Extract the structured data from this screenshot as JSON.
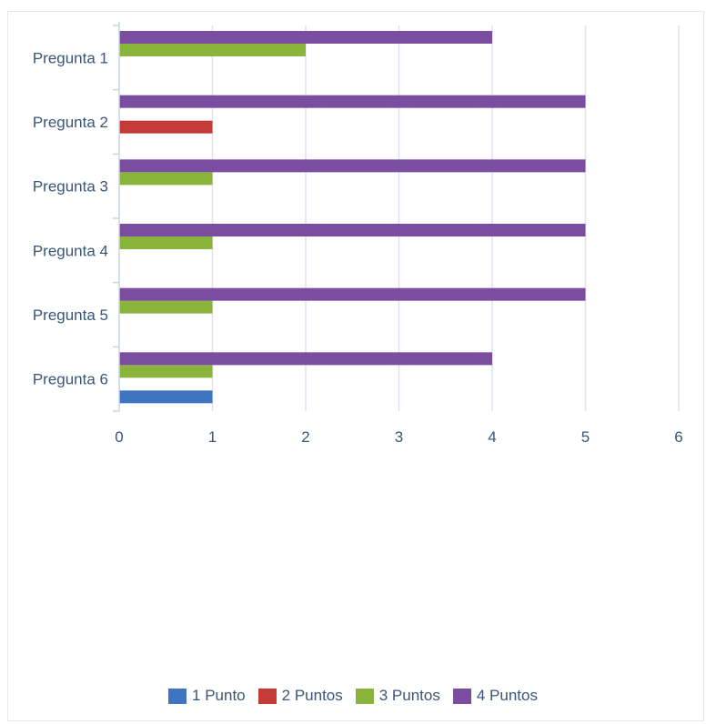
{
  "chart_data": {
    "type": "bar",
    "orientation": "horizontal",
    "categories": [
      "Pregunta 1",
      "Pregunta 2",
      "Pregunta 3",
      "Pregunta 4",
      "Pregunta 5",
      "Pregunta 6"
    ],
    "series": [
      {
        "name": "1 Punto",
        "color": "#3f74c1",
        "values": [
          0,
          0,
          0,
          0,
          0,
          1
        ]
      },
      {
        "name": "2 Puntos",
        "color": "#c33a36",
        "values": [
          0,
          1,
          0,
          0,
          0,
          0
        ]
      },
      {
        "name": "3 Puntos",
        "color": "#8ab43c",
        "values": [
          2,
          0,
          1,
          1,
          1,
          1
        ]
      },
      {
        "name": "4 Puntos",
        "color": "#7b4da0",
        "values": [
          4,
          5,
          5,
          5,
          5,
          4
        ]
      }
    ],
    "xlim": [
      0,
      6
    ],
    "x_ticks": [
      "0",
      "1",
      "2",
      "3",
      "4",
      "5",
      "6"
    ],
    "grid": "vertical",
    "legend_position": "bottom",
    "title": "",
    "xlabel": "",
    "ylabel": ""
  }
}
